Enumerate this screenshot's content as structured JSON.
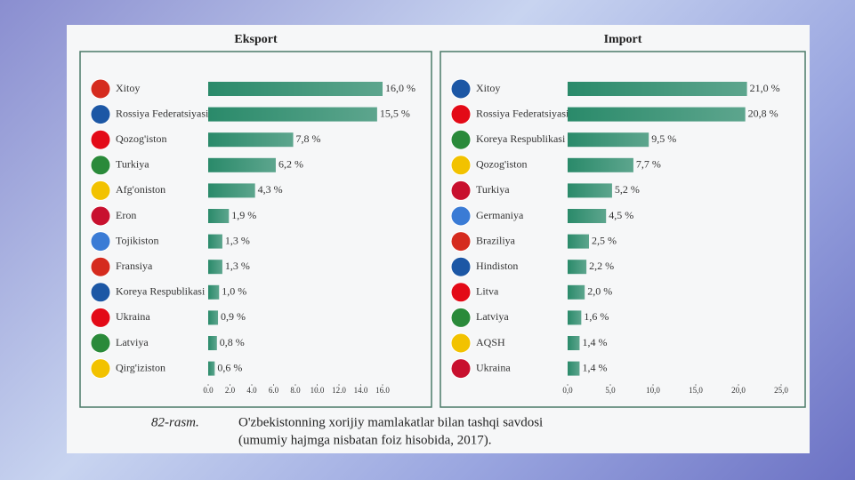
{
  "chart_data": [
    {
      "type": "hbar",
      "title": "Eksport",
      "color": "#2a8a6a",
      "categories": [
        "Xitoy",
        "Rossiya Federatsiyasi",
        "Qozog'iston",
        "Turkiya",
        "Afg'oniston",
        "Eron",
        "Tojikiston",
        "Fransiya",
        "Koreya Respublikasi",
        "Ukraina",
        "Latviya",
        "Qirg'iziston"
      ],
      "values": [
        16.0,
        15.5,
        7.8,
        6.2,
        4.3,
        1.9,
        1.3,
        1.3,
        1.0,
        0.9,
        0.8,
        0.6
      ],
      "value_labels": [
        "16,0 %",
        "15,5 %",
        "7,8 %",
        "6,2 %",
        "4,3 %",
        "1,9 %",
        "1,3 %",
        "1,3 %",
        "1,0 %",
        "0,9 %",
        "0,8 %",
        "0,6 %"
      ],
      "xlim": [
        0,
        16
      ],
      "xticks": [
        {
          "value": 0,
          "label": "0.0"
        },
        {
          "value": 2,
          "label": "2.0"
        },
        {
          "value": 4,
          "label": "4.0"
        },
        {
          "value": 6,
          "label": "6.0"
        },
        {
          "value": 8,
          "label": "8.0"
        },
        {
          "value": 10,
          "label": "10.0"
        },
        {
          "value": 12,
          "label": "12.0"
        },
        {
          "value": 14,
          "label": "14.0"
        },
        {
          "value": 16,
          "label": "16.0"
        }
      ]
    },
    {
      "type": "hbar",
      "title": "Import",
      "color": "#2a8a6a",
      "categories": [
        "Xitoy",
        "Rossiya Federatsiyasi",
        "Koreya Respublikasi",
        "Qozog'iston",
        "Turkiya",
        "Germaniya",
        "Braziliya",
        "Hindiston",
        "Litva",
        "Latviya",
        "AQSH",
        "Ukraina"
      ],
      "values": [
        21.0,
        20.8,
        9.5,
        7.7,
        5.2,
        4.5,
        2.5,
        2.2,
        2.0,
        1.6,
        1.4,
        1.4
      ],
      "value_labels": [
        "21,0 %",
        "20,8 %",
        "9,5 %",
        "7,7 %",
        "5,2 %",
        "4,5 %",
        "2,5 %",
        "2,2 %",
        "2,0 %",
        "1,6 %",
        "1,4 %",
        "1,4 %"
      ],
      "xlim": [
        0,
        25
      ],
      "xticks": [
        {
          "value": 0,
          "label": "0,0"
        },
        {
          "value": 5,
          "label": "5,0"
        },
        {
          "value": 10,
          "label": "10,0"
        },
        {
          "value": 15,
          "label": "15,0"
        },
        {
          "value": 20,
          "label": "20,0"
        },
        {
          "value": 25,
          "label": "25,0"
        }
      ]
    }
  ],
  "figure": {
    "label": "82-rasm.",
    "caption": [
      "O'zbekistonning xorijiy mamlakatlar bilan tashqi savdosi",
      "(umumiy hajmga nisbatan foiz hisobida, 2017)."
    ]
  }
}
